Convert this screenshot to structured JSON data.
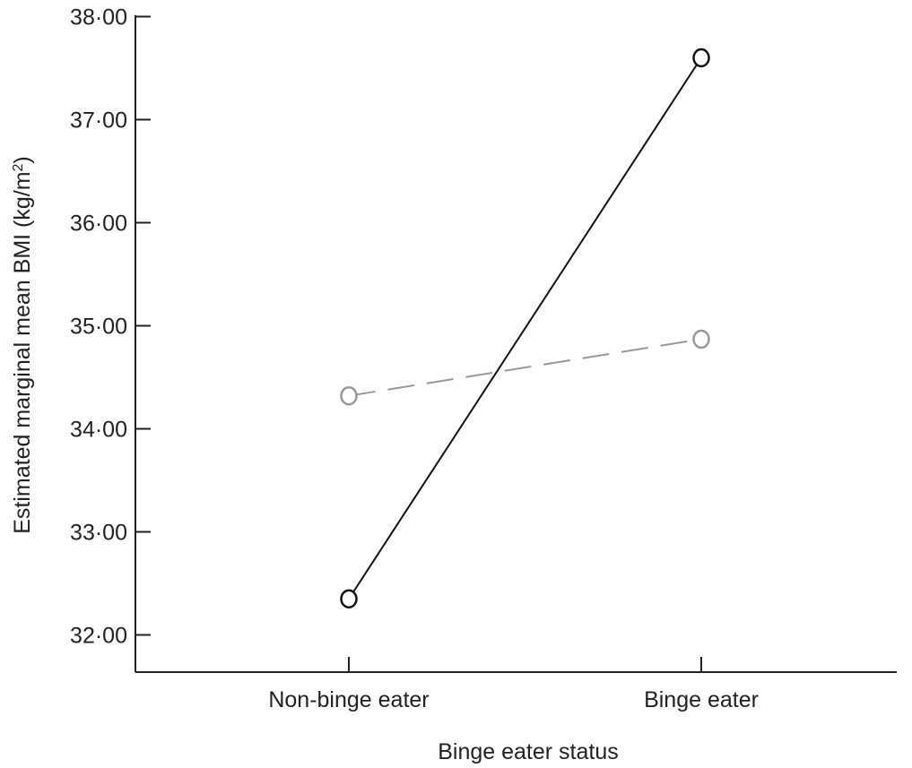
{
  "chart_data": {
    "type": "line",
    "categories": [
      "Non-binge eater",
      "Binge eater"
    ],
    "series": [
      {
        "values": [
          32.35,
          37.6
        ],
        "color": "#111111",
        "style": "solid"
      },
      {
        "values": [
          34.32,
          34.87
        ],
        "color": "#999999",
        "style": "dashed"
      }
    ],
    "xlabel": "Binge eater status",
    "ylabel_main": "Estimated marginal mean BMI (kg/m",
    "ylabel_sup": "2",
    "ylabel_close": ")",
    "ylim": [
      31.88,
      38.0
    ],
    "yticks": [
      32.0,
      33.0,
      34.0,
      35.0,
      36.0,
      37.0,
      38.0
    ],
    "ytick_labels": [
      "32·00",
      "33·00",
      "34·00",
      "35·00",
      "36·00",
      "37·00",
      "38·00"
    ],
    "grid": false,
    "legend": "none"
  }
}
